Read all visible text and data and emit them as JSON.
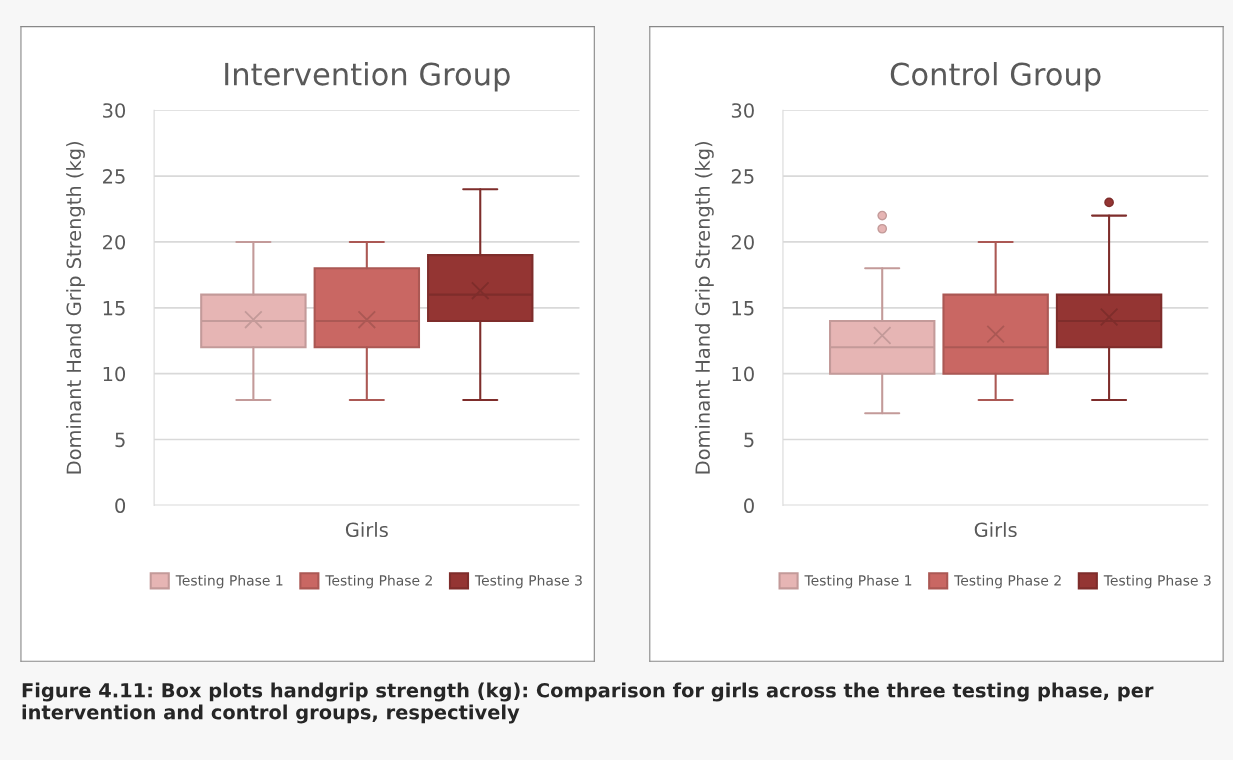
{
  "chart_data": [
    {
      "type": "box",
      "title": "Intervention Group",
      "ylabel": "Dominant Hand Grip Strength (kg)",
      "categories": [
        "Girls"
      ],
      "ylim": [
        0,
        30
      ],
      "yticks": [
        0,
        5,
        10,
        15,
        20,
        25,
        30
      ],
      "grid": "y",
      "legend": "bottom",
      "series": [
        {
          "name": "Testing Phase 1",
          "color": "#e6b5b4",
          "boxes": [
            {
              "low": 8,
              "q1": 12,
              "median": 14,
              "q3": 16,
              "high": 20,
              "mean": 14.1
            }
          ]
        },
        {
          "name": "Testing Phase 2",
          "color": "#c96763",
          "boxes": [
            {
              "low": 8,
              "q1": 12,
              "median": 14,
              "q3": 18,
              "high": 20,
              "mean": 14.1
            }
          ]
        },
        {
          "name": "Testing Phase 3",
          "color": "#943533",
          "boxes": [
            {
              "low": 8,
              "q1": 14,
              "median": 16,
              "q3": 19,
              "high": 24,
              "mean": 16.3
            }
          ]
        }
      ],
      "annotations": [
        "Figure 4.11: Box plots handgrip strength (kg): Comparison for girls across the three testing phase, per intervention and control groups, respectively"
      ]
    },
    {
      "type": "box",
      "title": "Control Group",
      "ylabel": "Dominant Hand Grip Strength (kg)",
      "categories": [
        "Girls"
      ],
      "ylim": [
        0,
        30
      ],
      "yticks": [
        0,
        5,
        10,
        15,
        20,
        25,
        30
      ],
      "grid": "y",
      "legend": "bottom",
      "series": [
        {
          "name": "Testing Phase 1",
          "color": "#e6b5b4",
          "boxes": [
            {
              "low": 7,
              "q1": 10,
              "median": 12,
              "q3": 14,
              "high": 18,
              "mean": 12.9,
              "outliers": [
                21,
                22
              ]
            }
          ]
        },
        {
          "name": "Testing Phase 2",
          "color": "#c96763",
          "boxes": [
            {
              "low": 8,
              "q1": 10,
              "median": 12,
              "q3": 16,
              "high": 20,
              "mean": 13.0
            }
          ]
        },
        {
          "name": "Testing Phase 3",
          "color": "#943533",
          "boxes": [
            {
              "low": 8,
              "q1": 12,
              "median": 14,
              "q3": 16,
              "high": 22,
              "mean": 14.3,
              "outliers": [
                23
              ]
            }
          ]
        }
      ]
    }
  ]
}
